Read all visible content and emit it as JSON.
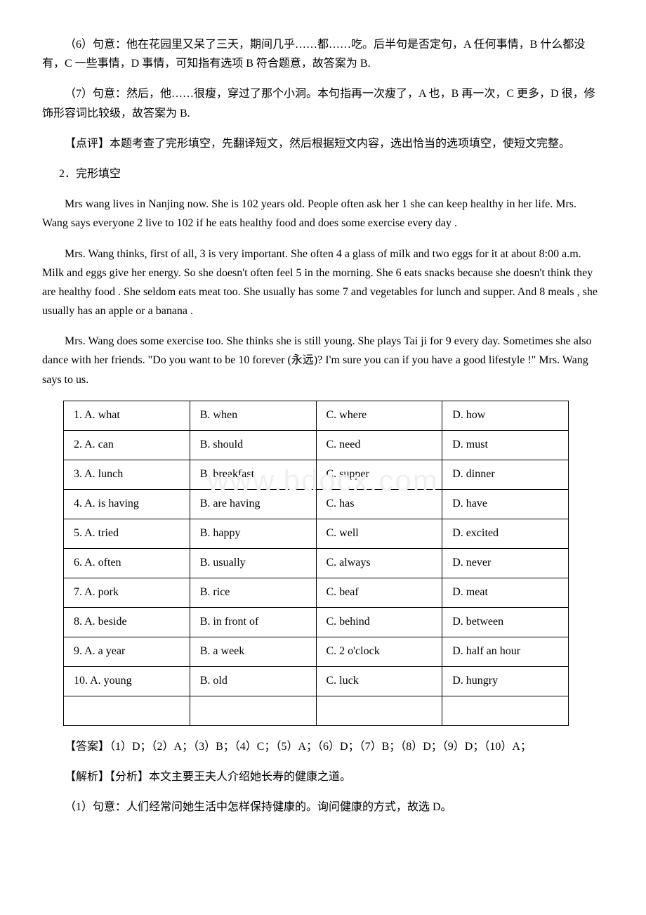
{
  "explanation": {
    "item6": "（6）句意：他在花园里又呆了三天，期间几乎……都……吃。后半句是否定句，A 任何事情，B 什么都没有，C 一些事情，D 事情，可知指有选项 B 符合题意，故答案为 B.",
    "item7": "（7）句意：然后，他……很瘦，穿过了那个小洞。本句指再一次瘦了，A 也，B 再一次，C 更多，D 很，修饰形容词比较级，故答案为 B.",
    "review": "【点评】本题考查了完形填空，先翻译短文，然后根据短文内容，选出恰当的选项填空，使短文完整。"
  },
  "question2": {
    "title": "2．完形填空",
    "passage1": "Mrs wang lives in Nanjing now. She is 102 years old. People often ask her  1  she can keep healthy in her life. Mrs. Wang says everyone 2  live to 102 if he eats healthy food and does some exercise every day .",
    "passage2": "Mrs. Wang thinks, first of all,  3  is very important. She often  4 a glass of milk and two eggs for it at about 8:00 a.m. Milk and eggs give her energy. So she doesn't often feel  5 in the morning. She 6  eats snacks because she doesn't think they are healthy food . She seldom eats meat too. She usually has some 7 and vegetables for lunch and supper. And 8  meals , she usually has an apple or a banana .",
    "passage3": "Mrs. Wang does some exercise too. She thinks she is still young. She plays Tai ji for 9  every day. Sometimes she also dance with her friends. \"Do you want to be 10  forever (永远)? I'm sure you can if you have a good lifestyle !\" Mrs. Wang says to us.",
    "options": [
      [
        "1. A. what",
        "B. when",
        "C. where",
        "D. how"
      ],
      [
        "2. A. can",
        "B. should",
        "C. need",
        "D. must"
      ],
      [
        "3. A. lunch",
        "B. breakfast",
        "C. supper",
        "D. dinner"
      ],
      [
        "4. A. is having",
        "B. are having",
        "C. has",
        "D. have"
      ],
      [
        "5. A. tried",
        "B. happy",
        "C. well",
        "D. excited"
      ],
      [
        "6. A. often",
        "B. usually",
        "C. always",
        "D. never"
      ],
      [
        "7. A. pork",
        "B. rice",
        "C. beaf",
        "D. meat"
      ],
      [
        "8. A. beside",
        "B. in front of",
        "C. behind",
        "D. between"
      ],
      [
        "9. A. a year",
        "B. a week",
        "C. 2 o'clock",
        "D. half an hour"
      ],
      [
        "10. A. young",
        "B. old",
        "C. luck",
        "D. hungry"
      ]
    ],
    "answer": "【答案】（1）D；（2）A；（3）B；（4）C；（5）A；（6）D；（7）B；（8）D；（9）D；（10）A；",
    "analysis": {
      "intro": "【解析】【分析】本文主要王夫人介绍她长寿的健康之道。",
      "item1": "（1）句意：人们经常问她生活中怎样保持健康的。询问健康的方式，故选 D。"
    }
  },
  "watermark": "www.bdocx.com"
}
